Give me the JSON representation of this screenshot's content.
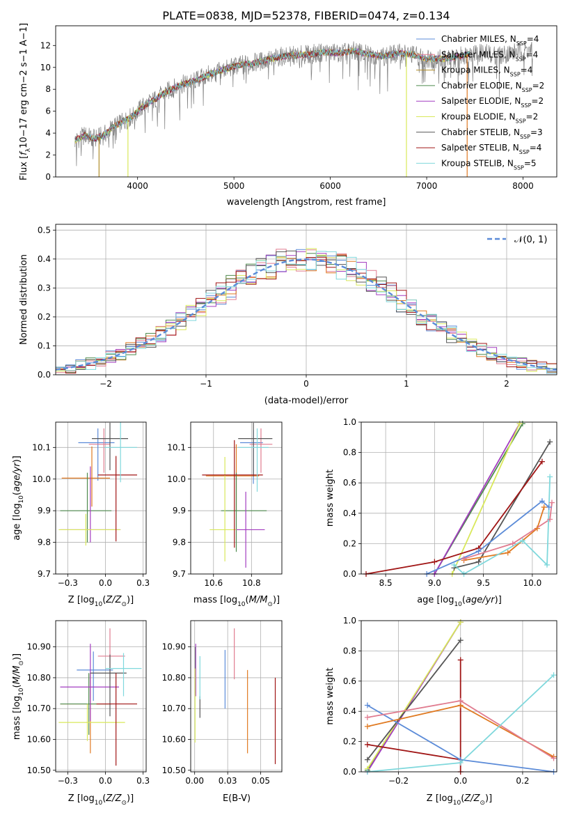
{
  "figure": {
    "title": "PLATE=0838, MJD=52378, FIBERID=0474, z=0.134"
  },
  "colors": {
    "chabrier_miles": "#5b8bd8",
    "salpeter_miles": "#e07b8f",
    "kroupa_miles": "#b08d28",
    "chabrier_elodie": "#4e8a4e",
    "salpeter_elodie": "#a33cc0",
    "kroupa_elodie": "#d9e85a",
    "chabrier_stelib": "#555555",
    "salpeter_stelib": "#a01515",
    "kroupa_stelib": "#7fd8dc",
    "orange_model": "#e07a22",
    "data_gray": "#7f7f7f",
    "normal_curve": "#5b8bd8",
    "grid": "#b0b0b0"
  },
  "chart_data": [
    {
      "id": "spectrum",
      "type": "line",
      "xlabel": "wavelength [Angstrom, rest frame]",
      "xlim": [
        3150,
        8350
      ],
      "ylim": [
        0,
        13.8
      ],
      "xticks": [
        4000,
        5000,
        6000,
        7000,
        8000
      ],
      "yticks": [
        0,
        2,
        4,
        6,
        8,
        10,
        12
      ],
      "grid": false,
      "legend": {
        "placement": "upper-right",
        "entries": [
          {
            "label": "Chabrier MILES, N",
            "sub": "SSP",
            "eq": "=4",
            "color": "#5b8bd8"
          },
          {
            "label": "Salpeter MILES, N",
            "sub": "SSP",
            "eq": "=4",
            "color": "#e07b8f"
          },
          {
            "label": "Kroupa MILES, N",
            "sub": "SSP",
            "eq": "=4",
            "color": "#b08d28"
          },
          {
            "label": "Chabrier ELODIE, N",
            "sub": "SSP",
            "eq": "=2",
            "color": "#4e8a4e"
          },
          {
            "label": "Salpeter ELODIE, N",
            "sub": "SSP",
            "eq": "=2",
            "color": "#a33cc0"
          },
          {
            "label": "Kroupa ELODIE, N",
            "sub": "SSP",
            "eq": "=2",
            "color": "#d9e85a"
          },
          {
            "label": "Chabrier STELIB, N",
            "sub": "SSP",
            "eq": "=3",
            "color": "#555555"
          },
          {
            "label": "Salpeter STELIB, N",
            "sub": "SSP",
            "eq": "=4",
            "color": "#a01515"
          },
          {
            "label": "Kroupa STELIB, N",
            "sub": "SSP",
            "eq": "=5",
            "color": "#7fd8dc"
          }
        ]
      },
      "continuum": {
        "x": [
          3350,
          3450,
          3550,
          3650,
          3750,
          3850,
          3950,
          4050,
          4150,
          4250,
          4350,
          4450,
          4600,
          4750,
          4900,
          5050,
          5200,
          5350,
          5500,
          5650,
          5800,
          5950,
          6100,
          6250,
          6400,
          6550,
          6700,
          6850,
          7000,
          7150,
          7300,
          7450,
          7600,
          7750,
          7900,
          8050,
          8100
        ],
        "y": [
          3.3,
          3.8,
          3.5,
          3.8,
          4.6,
          5.0,
          5.6,
          6.4,
          6.9,
          7.5,
          8.0,
          8.4,
          8.8,
          9.4,
          9.8,
          10.2,
          10.4,
          10.7,
          11.0,
          11.1,
          11.2,
          11.4,
          11.3,
          11.5,
          11.2,
          11.0,
          11.3,
          11.2,
          10.8,
          10.8,
          10.9,
          11.3,
          11.3,
          11.1,
          11.4,
          11.6,
          11.4
        ]
      },
      "dropouts": [
        {
          "x": 3600,
          "y": 0
        },
        {
          "x": 3900,
          "y": 0
        },
        {
          "x": 6790,
          "y": 0
        },
        {
          "x": 7420,
          "y": 0
        }
      ]
    },
    {
      "id": "residuals",
      "type": "bar",
      "xlabel": "(data-model)/error",
      "ylabel": "Normed distribution",
      "xlim": [
        -2.5,
        2.5
      ],
      "ylim": [
        0,
        0.52
      ],
      "xticks": [
        -2,
        -1,
        0,
        1,
        2
      ],
      "yticks": [
        0.0,
        0.1,
        0.2,
        0.3,
        0.4,
        0.5
      ],
      "grid": true,
      "bin_width": 0.1,
      "legend": {
        "placement": "upper-right",
        "label": "𝒩(0, 1)"
      },
      "normal": {
        "mean": 0,
        "sigma": 1
      }
    },
    {
      "id": "age_vs_z",
      "type": "scatter",
      "xlabel": "Z [log10(Z/Z⊙)]",
      "ylabel": "age [log10(age/yr)]",
      "xlim": [
        -0.33,
        0.27
      ],
      "ylim": [
        9.7,
        10.18
      ],
      "xticks": [
        -0.25,
        0.0,
        0.25
      ],
      "yticks": [
        9.7,
        9.8,
        9.9,
        10.0,
        10.1
      ],
      "grid": true,
      "points": [
        {
          "x": -0.05,
          "y": 10.115,
          "xerr": [
            0.13,
            0.11
          ],
          "yerr": [
            0.12,
            0.045
          ],
          "color": "#5b8bd8"
        },
        {
          "x": -0.01,
          "y": 10.11,
          "xerr": [
            0.1,
            0.04
          ],
          "yerr": [
            0.09,
            0.05
          ],
          "color": "#e07b8f"
        },
        {
          "x": -0.09,
          "y": 10.003,
          "xerr": [
            0.2,
            0.12
          ],
          "yerr": [
            0.09,
            0.1
          ],
          "color": "#e07a22"
        },
        {
          "x": -0.12,
          "y": 9.9,
          "xerr": [
            0.18,
            0.16
          ],
          "yerr": [
            0.1,
            0.12
          ],
          "color": "#4e8a4e"
        },
        {
          "x": -0.1,
          "y": 9.84,
          "xerr": [
            0.2,
            0.2
          ],
          "yerr": [
            0.04,
            0.2
          ],
          "color": "#a33cc0"
        },
        {
          "x": -0.13,
          "y": 9.84,
          "xerr": [
            0.18,
            0.23
          ],
          "yerr": [
            0.05,
            0.05
          ],
          "color": "#d9e85a"
        },
        {
          "x": 0.03,
          "y": 10.128,
          "xerr": [
            0.12,
            0.12
          ],
          "yerr": [
            0.1,
            0.05
          ],
          "color": "#555555"
        },
        {
          "x": 0.07,
          "y": 10.013,
          "xerr": [
            0.12,
            0.14
          ],
          "yerr": [
            0.21,
            0.06
          ],
          "color": "#a01515"
        },
        {
          "x": 0.1,
          "y": 10.1,
          "xerr": [
            0.11,
            0.11
          ],
          "yerr": [
            0.11,
            0.09
          ],
          "color": "#7fd8dc"
        }
      ]
    },
    {
      "id": "age_vs_mass",
      "type": "scatter",
      "xlabel": "mass [log10(M/M⊙)]",
      "xlim": [
        10.48,
        10.96
      ],
      "ylim": [
        9.7,
        10.18
      ],
      "xticks": [
        10.6,
        10.8
      ],
      "yticks": [
        9.7,
        9.8,
        9.9,
        10.0,
        10.1
      ],
      "grid": true,
      "points": [
        {
          "x": 10.81,
          "y": 10.115,
          "xerr": [
            0.07,
            0.05
          ],
          "yerr": [
            0.13,
            0.04
          ],
          "color": "#5b8bd8"
        },
        {
          "x": 10.85,
          "y": 10.11,
          "xerr": [
            0.06,
            0.06
          ],
          "yerr": [
            0.09,
            0.05
          ],
          "color": "#e07b8f"
        },
        {
          "x": 10.72,
          "y": 10.01,
          "xerr": [
            0.16,
            0.12
          ],
          "yerr": [
            0.11,
            0.1
          ],
          "color": "#e07a22"
        },
        {
          "x": 10.72,
          "y": 9.9,
          "xerr": [
            0.08,
            0.16
          ],
          "yerr": [
            0.13,
            0.12
          ],
          "color": "#4e8a4e"
        },
        {
          "x": 10.77,
          "y": 9.84,
          "xerr": [
            0.06,
            0.1
          ],
          "yerr": [
            0.12,
            0.12
          ],
          "color": "#a33cc0"
        },
        {
          "x": 10.66,
          "y": 9.84,
          "xerr": [
            0.08,
            0.06
          ],
          "yerr": [
            0.1,
            0.23
          ],
          "color": "#d9e85a"
        },
        {
          "x": 10.81,
          "y": 10.128,
          "xerr": [
            0.08,
            0.1
          ],
          "yerr": [
            0.12,
            0.05
          ],
          "color": "#555555"
        },
        {
          "x": 10.71,
          "y": 10.013,
          "xerr": [
            0.17,
            0.15
          ],
          "yerr": [
            0.23,
            0.11
          ],
          "color": "#a01515"
        },
        {
          "x": 10.83,
          "y": 10.1,
          "xerr": [
            0.1,
            0.06
          ],
          "yerr": [
            0.14,
            0.06
          ],
          "color": "#7fd8dc"
        }
      ]
    },
    {
      "id": "mass_weight_vs_age",
      "type": "line",
      "xlabel": "age [log10(age/yr)]",
      "ylabel": "mass weight",
      "xlim": [
        8.25,
        10.25
      ],
      "ylim": [
        0,
        1
      ],
      "xticks": [
        8.5,
        9.0,
        9.5,
        10.0
      ],
      "yticks": [
        0.0,
        0.2,
        0.4,
        0.6,
        0.8,
        1.0
      ],
      "grid": true,
      "series": [
        {
          "color": "#4e8a4e",
          "x": [
            9.0,
            9.9
          ],
          "y": [
            0.0,
            0.99
          ]
        },
        {
          "color": "#a33cc0",
          "x": [
            9.0,
            9.87
          ],
          "y": [
            0.0,
            0.99
          ]
        },
        {
          "color": "#d9e85a",
          "x": [
            9.18,
            9.87
          ],
          "y": [
            0.0,
            0.99
          ]
        },
        {
          "color": "#555555",
          "x": [
            9.2,
            9.45,
            10.18
          ],
          "y": [
            0.04,
            0.08,
            0.87
          ]
        },
        {
          "color": "#a01515",
          "x": [
            8.3,
            9.0,
            9.45,
            10.1
          ],
          "y": [
            0.0,
            0.08,
            0.17,
            0.74
          ]
        },
        {
          "color": "#5b8bd8",
          "x": [
            8.92,
            9.45,
            10.1,
            10.17
          ],
          "y": [
            0.0,
            0.15,
            0.48,
            0.44
          ]
        },
        {
          "color": "#e07a22",
          "x": [
            9.3,
            9.75,
            10.05,
            10.12
          ],
          "y": [
            0.09,
            0.14,
            0.3,
            0.44
          ]
        },
        {
          "color": "#e07b8f",
          "x": [
            9.3,
            9.8,
            10.18,
            10.2
          ],
          "y": [
            0.1,
            0.2,
            0.36,
            0.47
          ]
        },
        {
          "color": "#7fd8dc",
          "x": [
            9.2,
            9.3,
            9.9,
            10.15,
            10.18
          ],
          "y": [
            0.06,
            0.0,
            0.22,
            0.06,
            0.64
          ]
        }
      ]
    },
    {
      "id": "mass_vs_z",
      "type": "scatter",
      "xlabel": "Z [log10(Z/Z⊙)]",
      "ylabel": "mass [log10(M/M⊙)]",
      "xlim": [
        -0.33,
        0.27
      ],
      "ylim": [
        10.495,
        10.985
      ],
      "xticks": [
        -0.25,
        0.0,
        0.25
      ],
      "yticks": [
        10.5,
        10.6,
        10.7,
        10.8,
        10.9
      ],
      "grid": true,
      "points": [
        {
          "x": -0.08,
          "y": 10.825,
          "xerr": [
            0.11,
            0.13
          ],
          "yerr": [
            0.1,
            0.06
          ],
          "color": "#5b8bd8"
        },
        {
          "x": 0.03,
          "y": 10.87,
          "xerr": [
            0.08,
            0.1
          ],
          "yerr": [
            0.08,
            0.09
          ],
          "color": "#e07b8f"
        },
        {
          "x": -0.1,
          "y": 10.715,
          "xerr": [
            0.2,
            0.12
          ],
          "yerr": [
            0.16,
            0.1
          ],
          "color": "#e07a22"
        },
        {
          "x": -0.11,
          "y": 10.715,
          "xerr": [
            0.19,
            0.15
          ],
          "yerr": [
            0.1,
            0.1
          ],
          "color": "#4e8a4e"
        },
        {
          "x": -0.1,
          "y": 10.77,
          "xerr": [
            0.2,
            0.19
          ],
          "yerr": [
            0.11,
            0.14
          ],
          "color": "#a33cc0"
        },
        {
          "x": -0.12,
          "y": 10.655,
          "xerr": [
            0.19,
            0.25
          ],
          "yerr": [
            0.06,
            0.06
          ],
          "color": "#d9e85a"
        },
        {
          "x": 0.03,
          "y": 10.815,
          "xerr": [
            0.13,
            0.11
          ],
          "yerr": [
            0.14,
            0.06
          ],
          "color": "#555555"
        },
        {
          "x": 0.07,
          "y": 10.715,
          "xerr": [
            0.13,
            0.14
          ],
          "yerr": [
            0.2,
            0.1
          ],
          "color": "#a01515"
        },
        {
          "x": 0.12,
          "y": 10.83,
          "xerr": [
            0.12,
            0.12
          ],
          "yerr": [
            0.09,
            0.05
          ],
          "color": "#7fd8dc"
        }
      ]
    },
    {
      "id": "mass_vs_ebv",
      "type": "scatter",
      "xlabel": "E(B-V)",
      "xlim": [
        -0.003,
        0.066
      ],
      "ylim": [
        10.495,
        10.985
      ],
      "xticks": [
        0.0,
        0.025,
        0.05
      ],
      "yticks": [
        10.5,
        10.6,
        10.7,
        10.8,
        10.9
      ],
      "grid": true,
      "points": [
        {
          "x": 0.023,
          "y": 10.8,
          "yerr": [
            0.1,
            0.09
          ],
          "color": "#5b8bd8"
        },
        {
          "x": 0.03,
          "y": 10.875,
          "yerr": [
            0.08,
            0.085
          ],
          "color": "#e07b8f"
        },
        {
          "x": 0.04,
          "y": 10.69,
          "yerr": [
            0.135,
            0.135
          ],
          "color": "#e07a22"
        },
        {
          "x": 0.0005,
          "y": 10.8,
          "yerr": [
            0.05,
            0.1
          ],
          "color": "#4e8a4e"
        },
        {
          "x": 0.0008,
          "y": 10.8,
          "yerr": [
            0.06,
            0.11
          ],
          "color": "#a33cc0"
        },
        {
          "x": 0.0003,
          "y": 10.73,
          "yerr": [
            0.14,
            0.1
          ],
          "color": "#d9e85a"
        },
        {
          "x": 0.004,
          "y": 10.71,
          "yerr": [
            0.04,
            0.03
          ],
          "color": "#555555"
        },
        {
          "x": 0.061,
          "y": 10.66,
          "yerr": [
            0.14,
            0.14
          ],
          "color": "#a01515"
        },
        {
          "x": 0.004,
          "y": 10.79,
          "yerr": [
            0.06,
            0.08
          ],
          "color": "#7fd8dc"
        }
      ]
    },
    {
      "id": "mass_weight_vs_z",
      "type": "line",
      "xlabel": "Z [log10(Z/Z⊙)]",
      "ylabel": "mass weight",
      "xlim": [
        -0.32,
        0.31
      ],
      "ylim": [
        0,
        1
      ],
      "xticks": [
        -0.2,
        0.0,
        0.2
      ],
      "yticks": [
        0.0,
        0.2,
        0.4,
        0.6,
        0.8,
        1.0
      ],
      "grid": true,
      "series": [
        {
          "color": "#4e8a4e",
          "x": [
            -0.3,
            0.0
          ],
          "y": [
            0.01,
            0.99
          ]
        },
        {
          "color": "#a33cc0",
          "x": [
            -0.3,
            0.0
          ],
          "y": [
            0.0,
            0.99
          ]
        },
        {
          "color": "#d9e85a",
          "x": [
            -0.3,
            0.0
          ],
          "y": [
            0.02,
            0.99
          ]
        },
        {
          "color": "#555555",
          "x": [
            -0.3,
            0.0
          ],
          "y": [
            0.08,
            0.87
          ]
        },
        {
          "color": "#a01515",
          "x": [
            -0.3,
            0.0,
            0.0,
            0.0
          ],
          "y": [
            0.18,
            0.08,
            0.74,
            0.0
          ]
        },
        {
          "color": "#5b8bd8",
          "x": [
            -0.3,
            0.0,
            0.3
          ],
          "y": [
            0.44,
            0.08,
            0.0
          ]
        },
        {
          "color": "#e07a22",
          "x": [
            -0.3,
            0.0,
            0.3
          ],
          "y": [
            0.3,
            0.44,
            0.1
          ]
        },
        {
          "color": "#e07b8f",
          "x": [
            -0.3,
            0.0,
            0.3
          ],
          "y": [
            0.36,
            0.47,
            0.09
          ]
        },
        {
          "color": "#7fd8dc",
          "x": [
            -0.3,
            0.0,
            0.3
          ],
          "y": [
            0.0,
            0.06,
            0.64
          ]
        }
      ]
    }
  ]
}
